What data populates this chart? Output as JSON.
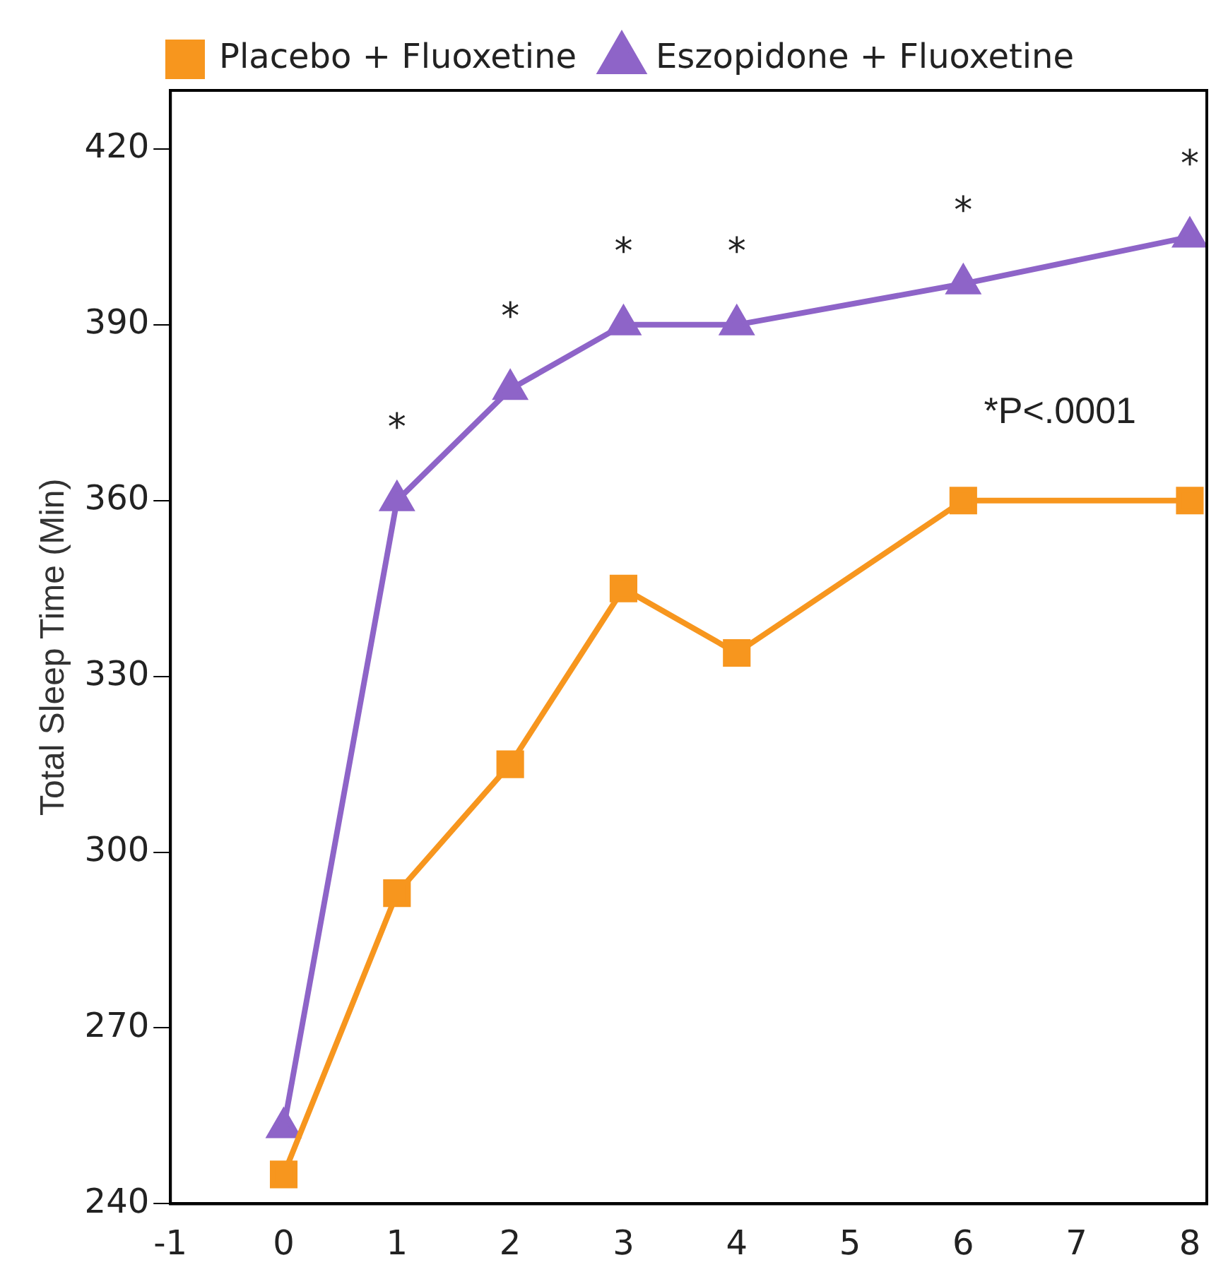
{
  "chart_data": {
    "type": "line",
    "ylabel": "Total Sleep Time (Min)",
    "x": [
      0,
      1,
      2,
      3,
      4,
      6,
      8
    ],
    "series": [
      {
        "name": "Placebo + Fluoxetine",
        "color": "#f7961e",
        "marker": "square",
        "values": [
          245,
          293,
          315,
          345,
          334,
          360,
          360
        ]
      },
      {
        "name": "Eszopidone + Fluoxetine",
        "color": "#8e64c8",
        "marker": "triangle",
        "values": [
          253,
          360,
          379,
          390,
          390,
          397,
          405
        ]
      }
    ],
    "xlim": [
      -1,
      8.15
    ],
    "xticks": [
      -1,
      0,
      1,
      2,
      3,
      4,
      5,
      6,
      7,
      8
    ],
    "ylim": [
      240,
      430
    ],
    "yticks": [
      240,
      270,
      300,
      330,
      360,
      390,
      420
    ],
    "grid": false,
    "legend": "top",
    "line_style": "solid",
    "annotations": [
      {
        "text": "*",
        "x": 1,
        "y": 360
      },
      {
        "text": "*",
        "x": 2,
        "y": 379
      },
      {
        "text": "*",
        "x": 3,
        "y": 390
      },
      {
        "text": "*",
        "x": 4,
        "y": 390
      },
      {
        "text": "*",
        "x": 6,
        "y": 397
      },
      {
        "text": "*",
        "x": 8,
        "y": 405
      },
      "*P<.0001"
    ]
  }
}
